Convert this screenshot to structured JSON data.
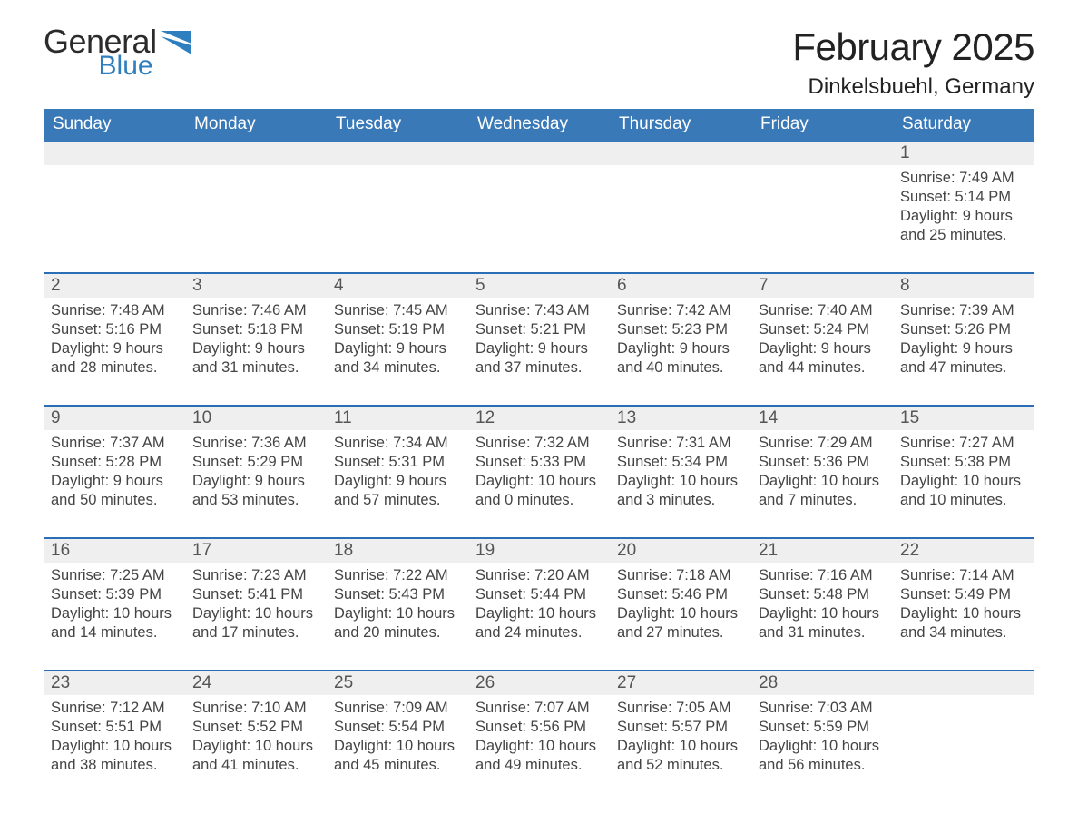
{
  "colors": {
    "header_blue": "#3a79b7",
    "accent_blue": "#2a6fb5",
    "row_gray": "#efefef",
    "text_dark": "#343434",
    "text_mid": "#444444",
    "logo_blue": "#2f7fbf",
    "logo_dark": "#2b2b2b",
    "background": "#ffffff"
  },
  "typography": {
    "month_title_fontsize_pt": 32,
    "location_fontsize_pt": 18,
    "day_of_week_fontsize_pt": 14,
    "daynum_fontsize_pt": 14,
    "body_fontsize_pt": 12
  },
  "layout": {
    "columns": 7,
    "weeks": 5,
    "column_order": [
      "Sunday",
      "Monday",
      "Tuesday",
      "Wednesday",
      "Thursday",
      "Friday",
      "Saturday"
    ]
  },
  "logo": {
    "line1": "General",
    "line2": "Blue"
  },
  "title": "February 2025",
  "location": "Dinkelsbuehl, Germany",
  "days_of_week": [
    "Sunday",
    "Monday",
    "Tuesday",
    "Wednesday",
    "Thursday",
    "Friday",
    "Saturday"
  ],
  "weeks": [
    [
      null,
      null,
      null,
      null,
      null,
      null,
      {
        "n": "1",
        "sunrise": "Sunrise: 7:49 AM",
        "sunset": "Sunset: 5:14 PM",
        "daylight": "Daylight: 9 hours and 25 minutes."
      }
    ],
    [
      {
        "n": "2",
        "sunrise": "Sunrise: 7:48 AM",
        "sunset": "Sunset: 5:16 PM",
        "daylight": "Daylight: 9 hours and 28 minutes."
      },
      {
        "n": "3",
        "sunrise": "Sunrise: 7:46 AM",
        "sunset": "Sunset: 5:18 PM",
        "daylight": "Daylight: 9 hours and 31 minutes."
      },
      {
        "n": "4",
        "sunrise": "Sunrise: 7:45 AM",
        "sunset": "Sunset: 5:19 PM",
        "daylight": "Daylight: 9 hours and 34 minutes."
      },
      {
        "n": "5",
        "sunrise": "Sunrise: 7:43 AM",
        "sunset": "Sunset: 5:21 PM",
        "daylight": "Daylight: 9 hours and 37 minutes."
      },
      {
        "n": "6",
        "sunrise": "Sunrise: 7:42 AM",
        "sunset": "Sunset: 5:23 PM",
        "daylight": "Daylight: 9 hours and 40 minutes."
      },
      {
        "n": "7",
        "sunrise": "Sunrise: 7:40 AM",
        "sunset": "Sunset: 5:24 PM",
        "daylight": "Daylight: 9 hours and 44 minutes."
      },
      {
        "n": "8",
        "sunrise": "Sunrise: 7:39 AM",
        "sunset": "Sunset: 5:26 PM",
        "daylight": "Daylight: 9 hours and 47 minutes."
      }
    ],
    [
      {
        "n": "9",
        "sunrise": "Sunrise: 7:37 AM",
        "sunset": "Sunset: 5:28 PM",
        "daylight": "Daylight: 9 hours and 50 minutes."
      },
      {
        "n": "10",
        "sunrise": "Sunrise: 7:36 AM",
        "sunset": "Sunset: 5:29 PM",
        "daylight": "Daylight: 9 hours and 53 minutes."
      },
      {
        "n": "11",
        "sunrise": "Sunrise: 7:34 AM",
        "sunset": "Sunset: 5:31 PM",
        "daylight": "Daylight: 9 hours and 57 minutes."
      },
      {
        "n": "12",
        "sunrise": "Sunrise: 7:32 AM",
        "sunset": "Sunset: 5:33 PM",
        "daylight": "Daylight: 10 hours and 0 minutes."
      },
      {
        "n": "13",
        "sunrise": "Sunrise: 7:31 AM",
        "sunset": "Sunset: 5:34 PM",
        "daylight": "Daylight: 10 hours and 3 minutes."
      },
      {
        "n": "14",
        "sunrise": "Sunrise: 7:29 AM",
        "sunset": "Sunset: 5:36 PM",
        "daylight": "Daylight: 10 hours and 7 minutes."
      },
      {
        "n": "15",
        "sunrise": "Sunrise: 7:27 AM",
        "sunset": "Sunset: 5:38 PM",
        "daylight": "Daylight: 10 hours and 10 minutes."
      }
    ],
    [
      {
        "n": "16",
        "sunrise": "Sunrise: 7:25 AM",
        "sunset": "Sunset: 5:39 PM",
        "daylight": "Daylight: 10 hours and 14 minutes."
      },
      {
        "n": "17",
        "sunrise": "Sunrise: 7:23 AM",
        "sunset": "Sunset: 5:41 PM",
        "daylight": "Daylight: 10 hours and 17 minutes."
      },
      {
        "n": "18",
        "sunrise": "Sunrise: 7:22 AM",
        "sunset": "Sunset: 5:43 PM",
        "daylight": "Daylight: 10 hours and 20 minutes."
      },
      {
        "n": "19",
        "sunrise": "Sunrise: 7:20 AM",
        "sunset": "Sunset: 5:44 PM",
        "daylight": "Daylight: 10 hours and 24 minutes."
      },
      {
        "n": "20",
        "sunrise": "Sunrise: 7:18 AM",
        "sunset": "Sunset: 5:46 PM",
        "daylight": "Daylight: 10 hours and 27 minutes."
      },
      {
        "n": "21",
        "sunrise": "Sunrise: 7:16 AM",
        "sunset": "Sunset: 5:48 PM",
        "daylight": "Daylight: 10 hours and 31 minutes."
      },
      {
        "n": "22",
        "sunrise": "Sunrise: 7:14 AM",
        "sunset": "Sunset: 5:49 PM",
        "daylight": "Daylight: 10 hours and 34 minutes."
      }
    ],
    [
      {
        "n": "23",
        "sunrise": "Sunrise: 7:12 AM",
        "sunset": "Sunset: 5:51 PM",
        "daylight": "Daylight: 10 hours and 38 minutes."
      },
      {
        "n": "24",
        "sunrise": "Sunrise: 7:10 AM",
        "sunset": "Sunset: 5:52 PM",
        "daylight": "Daylight: 10 hours and 41 minutes."
      },
      {
        "n": "25",
        "sunrise": "Sunrise: 7:09 AM",
        "sunset": "Sunset: 5:54 PM",
        "daylight": "Daylight: 10 hours and 45 minutes."
      },
      {
        "n": "26",
        "sunrise": "Sunrise: 7:07 AM",
        "sunset": "Sunset: 5:56 PM",
        "daylight": "Daylight: 10 hours and 49 minutes."
      },
      {
        "n": "27",
        "sunrise": "Sunrise: 7:05 AM",
        "sunset": "Sunset: 5:57 PM",
        "daylight": "Daylight: 10 hours and 52 minutes."
      },
      {
        "n": "28",
        "sunrise": "Sunrise: 7:03 AM",
        "sunset": "Sunset: 5:59 PM",
        "daylight": "Daylight: 10 hours and 56 minutes."
      },
      null
    ]
  ]
}
